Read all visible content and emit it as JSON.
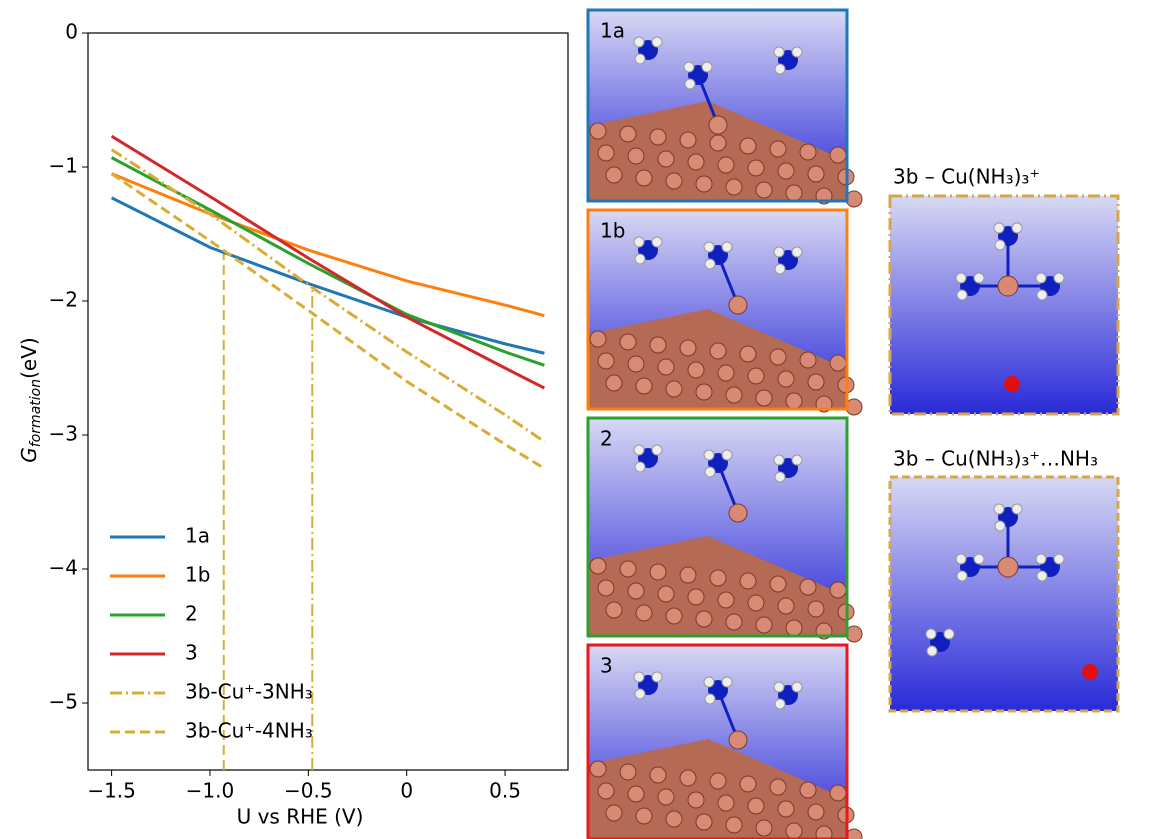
{
  "chart_data": {
    "type": "line",
    "x_label": "U vs RHE (V)",
    "y_label": {
      "main": "G",
      "sub": "formation",
      "unit": "(eV)"
    },
    "x": [
      -1.5,
      -1.0,
      -0.5,
      0.0,
      0.5,
      0.7
    ],
    "series": [
      {
        "name": "1a",
        "color": "#1f77b4",
        "style": "solid",
        "values": [
          -1.23,
          -1.6,
          -1.87,
          -2.12,
          -2.32,
          -2.39
        ]
      },
      {
        "name": "1b",
        "color": "#ff7f0e",
        "style": "solid",
        "values": [
          -1.05,
          -1.35,
          -1.62,
          -1.85,
          -2.03,
          -2.11
        ]
      },
      {
        "name": "2",
        "color": "#2ca02c",
        "style": "solid",
        "values": [
          -0.93,
          -1.32,
          -1.72,
          -2.1,
          -2.38,
          -2.48
        ]
      },
      {
        "name": "3",
        "color": "#d62728",
        "style": "solid",
        "values": [
          -0.77,
          -1.22,
          -1.68,
          -2.12,
          -2.5,
          -2.65
        ]
      },
      {
        "name": "3b-Cu⁺-3NH₃",
        "color": "#dbac35",
        "style": "dashdot",
        "values": [
          -0.87,
          -1.35,
          -1.88,
          -2.38,
          -2.85,
          -3.05
        ]
      },
      {
        "name": "3b-Cu⁺-4NH₃",
        "color": "#dbac35",
        "style": "dashed",
        "values": [
          -1.05,
          -1.55,
          -2.07,
          -2.6,
          -3.07,
          -3.25
        ]
      }
    ],
    "vertical_lines": [
      {
        "x": -0.93,
        "y": -1.6,
        "style": "dashed",
        "color": "#dbac35"
      },
      {
        "x": -0.48,
        "y": -1.88,
        "style": "dashdot",
        "color": "#dbac35"
      }
    ],
    "xlim": [
      -1.62,
      0.82
    ],
    "ylim": [
      -5.5,
      0
    ],
    "xticks": [
      {
        "value": -1.5,
        "label": "−1.5"
      },
      {
        "value": -1.0,
        "label": "−1.0"
      },
      {
        "value": -0.5,
        "label": "−0.5"
      },
      0.0,
      0.5
    ],
    "yticks": [
      0,
      {
        "value": -1,
        "label": "−1"
      },
      {
        "value": -2,
        "label": "−2"
      },
      {
        "value": -3,
        "label": "−3"
      },
      {
        "value": -4,
        "label": "−4"
      },
      {
        "value": -5,
        "label": "−5"
      }
    ],
    "legend": "lower left"
  },
  "panels": [
    {
      "label": "1a",
      "border": "#1f77b4"
    },
    {
      "label": "1b",
      "border": "#ff7f0e"
    },
    {
      "label": "2",
      "border": "#2ca02c"
    },
    {
      "label": "3",
      "border": "#e8181d"
    }
  ],
  "side_panels": [
    {
      "label": "3b – Cu(NH₃)₃⁺"
    },
    {
      "label": "3b – Cu(NH₃)₃⁺…NH₃"
    }
  ]
}
